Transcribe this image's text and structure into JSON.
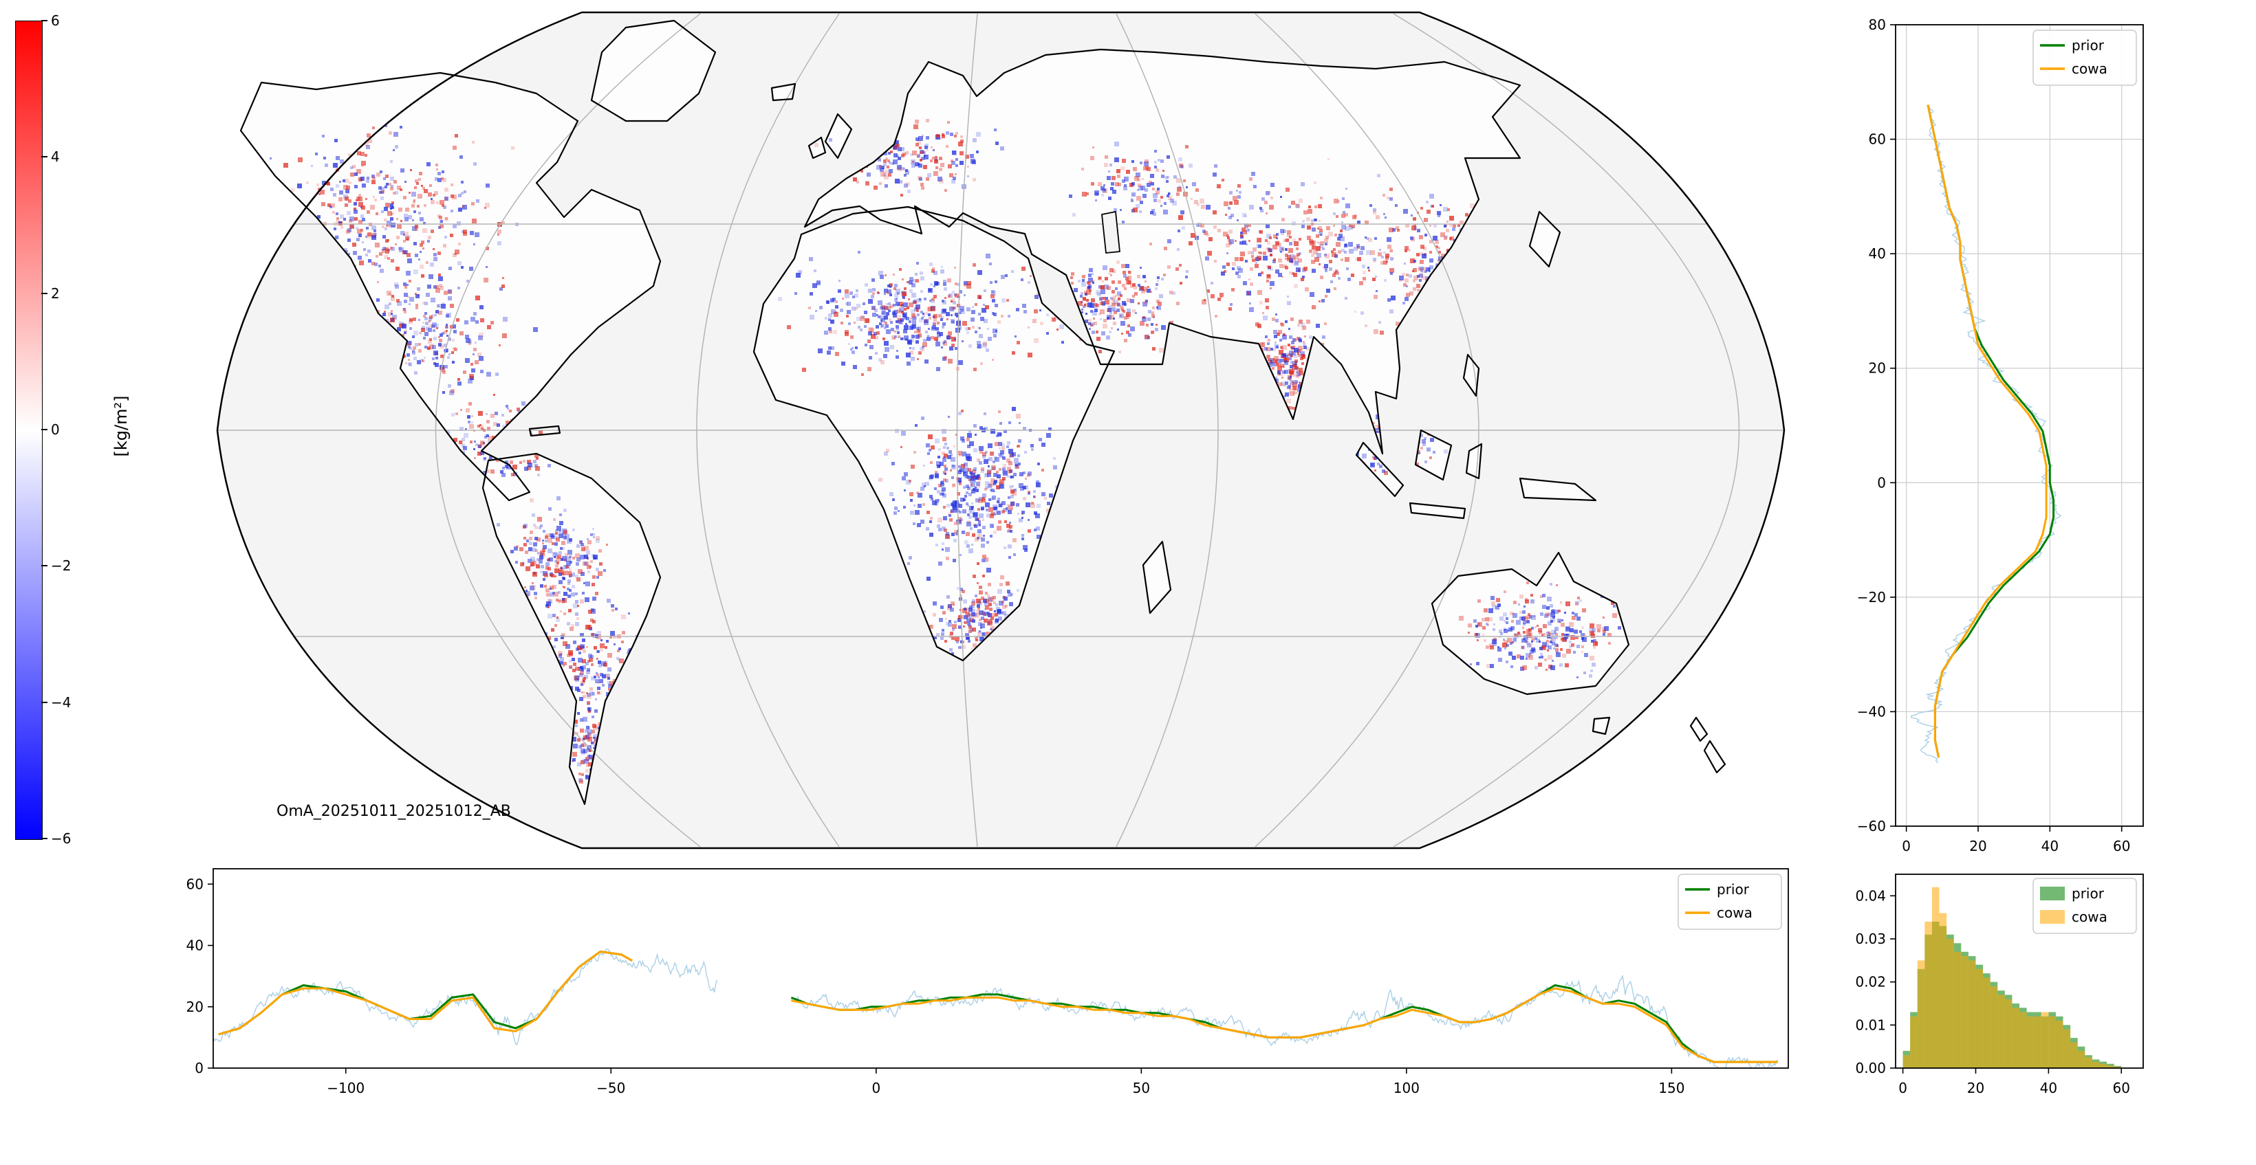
{
  "figure": {
    "title": "OmA_20251011_20251012_AB",
    "background": "#ffffff"
  },
  "colorbar": {
    "label": "[kg/m²]",
    "ticks": [
      6,
      4,
      2,
      0,
      -2,
      -4,
      -6
    ],
    "vmin": -6,
    "vmax": 6,
    "colors": {
      "positive": "#ff0000",
      "zero": "#ffffff",
      "negative": "#0000ff"
    }
  },
  "map": {
    "annotation": "OmA_20251011_20251012_AB",
    "projection": "robinson",
    "ocean_color": "#f4f4f4",
    "land_color": "#fdfdfd",
    "coastline_color": "#000000",
    "graticule_color": "#b5b5b5",
    "anomaly_positive_color": "#e03228",
    "anomaly_negative_color": "#2633dd"
  },
  "chart_data": [
    {
      "id": "map-panel",
      "type": "heatmap",
      "projection": "robinson",
      "annotation": "OmA_20251011_20251012_AB",
      "colorbar_label": "[kg/m²]",
      "vmin": -6,
      "vmax": 6,
      "units": "kg/m²",
      "description": "Global map of observation-minus-analysis differences shown as red (positive) and blue (negative) anomalies over land"
    },
    {
      "id": "latitude-profile",
      "type": "line",
      "orientation": "vertical-profile",
      "xlim": [
        -3,
        66
      ],
      "ylim": [
        -60,
        80
      ],
      "xticks": [
        0,
        20,
        40,
        60
      ],
      "yticks": [
        80,
        60,
        40,
        20,
        0,
        -20,
        -40,
        -60
      ],
      "grid": true,
      "legend": [
        {
          "label": "prior",
          "color": "green",
          "type": "line"
        },
        {
          "label": "cowa",
          "color": "orange",
          "type": "line"
        }
      ],
      "noisy_overlay": {
        "color": "#abcfe6",
        "amplitude": 2.2,
        "seed": 11,
        "lat_range": [
          66,
          -49
        ]
      },
      "series": [
        {
          "name": "prior",
          "color": "green",
          "lat": [
            66,
            63,
            60,
            57,
            54,
            51,
            48,
            45,
            42,
            39,
            36,
            33,
            30,
            27,
            24,
            21,
            18,
            15,
            12,
            9,
            6,
            3,
            0,
            -3,
            -6,
            -9,
            -12,
            -15,
            -18,
            -21,
            -24,
            -27,
            -30,
            -33,
            -36,
            -39,
            -42,
            -45,
            -48
          ],
          "values": [
            6,
            7,
            8,
            9,
            10,
            11,
            12,
            14,
            15,
            15,
            16,
            17,
            18,
            19,
            21,
            24,
            27,
            31,
            35,
            38,
            39,
            40,
            40,
            41,
            41,
            40,
            37,
            32,
            27,
            23,
            20,
            17,
            13,
            10,
            9,
            8,
            8,
            8,
            9
          ]
        },
        {
          "name": "cowa",
          "color": "orange",
          "lat": [
            66,
            63,
            60,
            57,
            54,
            51,
            48,
            45,
            42,
            39,
            36,
            33,
            30,
            27,
            24,
            21,
            18,
            15,
            12,
            9,
            6,
            3,
            0,
            -3,
            -6,
            -9,
            -12,
            -15,
            -18,
            -21,
            -24,
            -27,
            -30,
            -33,
            -36,
            -39,
            -42,
            -45,
            -48
          ],
          "values": [
            6,
            7,
            8,
            9,
            10,
            11,
            12,
            14,
            15,
            15,
            16,
            17,
            18,
            19,
            20,
            23,
            26,
            30,
            34,
            37,
            38,
            39,
            39,
            39,
            39,
            38,
            36,
            31,
            26,
            22,
            19,
            16,
            13,
            10,
            9,
            8,
            8,
            8,
            9
          ]
        }
      ]
    },
    {
      "id": "longitude-profile",
      "type": "line",
      "orientation": "horizontal-profile",
      "xlim": [
        -125,
        172
      ],
      "ylim": [
        0,
        65
      ],
      "xticks": [
        -100,
        -50,
        0,
        50,
        100,
        150
      ],
      "yticks": [
        0,
        20,
        40,
        60
      ],
      "grid": false,
      "legend": [
        {
          "label": "prior",
          "color": "green",
          "type": "line"
        },
        {
          "label": "cowa",
          "color": "orange",
          "type": "line"
        }
      ],
      "noisy_overlay": {
        "color": "#abcfe6",
        "amplitude": 3.0,
        "seed": 23,
        "segments": [
          [
            -125,
            -30
          ],
          [
            -16,
            170
          ]
        ]
      },
      "series": [
        {
          "name": "prior",
          "color": "green",
          "segments": [
            {
              "lon": [
                -124,
                -120,
                -116,
                -112,
                -108,
                -104,
                -100,
                -96,
                -92,
                -88,
                -84,
                -80,
                -76,
                -72,
                -68,
                -64,
                -60,
                -56,
                -52,
                -48,
                -46
              ],
              "values": [
                11,
                13,
                18,
                24,
                27,
                26,
                25,
                22,
                19,
                16,
                17,
                23,
                24,
                15,
                13,
                16,
                25,
                33,
                38,
                37,
                35
              ]
            },
            {
              "lon": [
                -16,
                -13,
                -10,
                -7,
                -4,
                -1,
                2,
                5,
                8,
                11,
                14,
                17,
                20,
                23,
                26,
                29,
                32,
                35,
                38,
                41,
                44,
                47,
                50,
                53,
                56,
                59,
                62,
                65,
                68,
                71,
                74,
                77,
                80,
                83,
                86,
                89,
                92,
                95,
                98,
                101,
                104,
                107,
                110,
                113,
                116,
                119,
                122,
                125,
                128,
                131,
                134,
                137,
                140,
                143,
                146,
                149,
                152,
                155,
                158,
                161,
                164,
                167,
                170
              ],
              "values": [
                23,
                21,
                20,
                19,
                19,
                20,
                20,
                21,
                22,
                22,
                23,
                23,
                24,
                24,
                23,
                22,
                21,
                21,
                20,
                20,
                19,
                19,
                18,
                18,
                17,
                16,
                15,
                13,
                12,
                11,
                10,
                10,
                10,
                11,
                12,
                13,
                14,
                16,
                18,
                20,
                19,
                17,
                15,
                15,
                16,
                18,
                21,
                24,
                27,
                26,
                23,
                21,
                22,
                21,
                18,
                15,
                8,
                4,
                2,
                2,
                2,
                2,
                2
              ]
            }
          ]
        },
        {
          "name": "cowa",
          "color": "orange",
          "segments": [
            {
              "lon": [
                -124,
                -120,
                -116,
                -112,
                -108,
                -104,
                -100,
                -96,
                -92,
                -88,
                -84,
                -80,
                -76,
                -72,
                -68,
                -64,
                -60,
                -56,
                -52,
                -48,
                -46
              ],
              "values": [
                11,
                13,
                18,
                24,
                26,
                26,
                24,
                22,
                19,
                16,
                16,
                22,
                23,
                13,
                12,
                16,
                25,
                33,
                38,
                37,
                35
              ]
            },
            {
              "lon": [
                -16,
                -13,
                -10,
                -7,
                -4,
                -1,
                2,
                5,
                8,
                11,
                14,
                17,
                20,
                23,
                26,
                29,
                32,
                35,
                38,
                41,
                44,
                47,
                50,
                53,
                56,
                59,
                62,
                65,
                68,
                71,
                74,
                77,
                80,
                83,
                86,
                89,
                92,
                95,
                98,
                101,
                104,
                107,
                110,
                113,
                116,
                119,
                122,
                125,
                128,
                131,
                134,
                137,
                140,
                143,
                146,
                149,
                152,
                155,
                158,
                161,
                164,
                167,
                170
              ],
              "values": [
                22,
                21,
                20,
                19,
                19,
                19,
                20,
                21,
                21,
                22,
                22,
                23,
                23,
                23,
                22,
                22,
                21,
                20,
                20,
                19,
                19,
                18,
                18,
                17,
                17,
                16,
                14,
                13,
                12,
                11,
                10,
                10,
                10,
                11,
                12,
                13,
                14,
                16,
                17,
                19,
                18,
                17,
                15,
                15,
                16,
                18,
                21,
                24,
                26,
                25,
                23,
                21,
                21,
                20,
                17,
                14,
                7,
                4,
                2,
                2,
                2,
                2,
                2
              ]
            }
          ]
        }
      ]
    },
    {
      "id": "value-histogram",
      "type": "histogram",
      "xlim": [
        -2,
        66
      ],
      "ylim": [
        0,
        0.045
      ],
      "xticks": [
        0,
        20,
        40,
        60
      ],
      "yticks": [
        0,
        0.01,
        0.02,
        0.03,
        0.04
      ],
      "ytick_decimals": 2,
      "bin_edges": [
        0,
        2,
        4,
        6,
        8,
        10,
        12,
        14,
        16,
        18,
        20,
        22,
        24,
        26,
        28,
        30,
        32,
        34,
        36,
        38,
        40,
        42,
        44,
        46,
        48,
        50,
        52,
        54,
        56,
        58,
        60
      ],
      "legend": [
        {
          "label": "prior",
          "color": "green",
          "type": "patch"
        },
        {
          "label": "cowa",
          "color": "orange",
          "type": "patch"
        }
      ],
      "series": [
        {
          "name": "prior",
          "color": "green",
          "densities": [
            0.004,
            0.013,
            0.023,
            0.031,
            0.034,
            0.033,
            0.031,
            0.029,
            0.027,
            0.026,
            0.024,
            0.022,
            0.02,
            0.018,
            0.017,
            0.015,
            0.014,
            0.013,
            0.013,
            0.012,
            0.013,
            0.012,
            0.01,
            0.007,
            0.005,
            0.003,
            0.002,
            0.0015,
            0.001,
            0.0005
          ]
        },
        {
          "name": "cowa",
          "color": "orange",
          "densities": [
            0.003,
            0.012,
            0.025,
            0.034,
            0.042,
            0.036,
            0.03,
            0.027,
            0.026,
            0.025,
            0.023,
            0.021,
            0.019,
            0.017,
            0.016,
            0.014,
            0.013,
            0.012,
            0.012,
            0.013,
            0.012,
            0.011,
            0.009,
            0.006,
            0.004,
            0.0025,
            0.0015,
            0.001,
            0.0006,
            0.0003
          ]
        }
      ]
    }
  ]
}
